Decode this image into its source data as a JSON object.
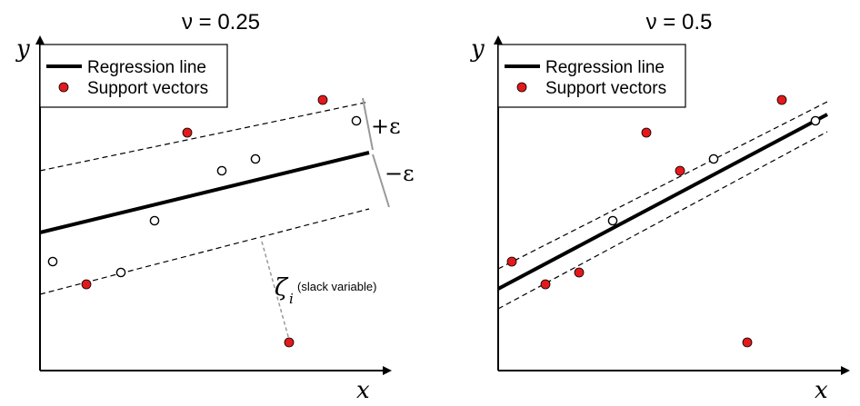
{
  "panels": [
    {
      "title": "ν = 0.25",
      "xlabel": "x",
      "ylabel": "y",
      "legend": {
        "line_label": "Regression line",
        "sv_label": "Support vectors"
      },
      "eps_plus": "+ε",
      "eps_minus": "−ε",
      "slack_symbol": "ζ",
      "slack_sub": "i",
      "slack_note": "(slack variable)"
    },
    {
      "title": "ν = 0.5",
      "xlabel": "x",
      "ylabel": "y",
      "legend": {
        "line_label": "Regression line",
        "sv_label": "Support vectors"
      }
    }
  ],
  "colors": {
    "support_vector": "#e31a1c",
    "axis": "#000000",
    "margin_bar": "#999999",
    "slack": "#999999"
  }
}
